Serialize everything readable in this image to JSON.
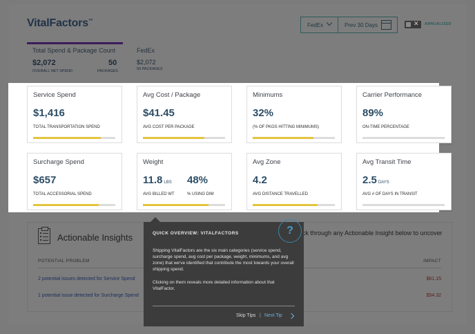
{
  "header": {
    "logo": "VitalFactors",
    "logo_tm": "™",
    "carrier": "FedEx",
    "range": "Prev 30 Days",
    "toggle_x": "✕",
    "annualized": "ANNUALIZED"
  },
  "tabs": [
    {
      "label": "Total Spend & Package Count",
      "value": "$2,072",
      "sub": "OVERALL NET SPEND",
      "value2": "50",
      "sub2": "PACKAGES"
    },
    {
      "label": "FedEx",
      "value": "$2,072",
      "sub": "50 PACKAGES"
    }
  ],
  "cards": {
    "service": {
      "title": "Service Spend",
      "value": "$1,416",
      "sub": "TOTAL TRANSPORTATION SPEND",
      "progress": 0.82
    },
    "avgcost": {
      "title": "Avg Cost / Package",
      "value": "$41.45",
      "sub": "AVG COST PER PACKAGE",
      "progress": 0.75
    },
    "minimums": {
      "title": "Minimums",
      "value": "32%",
      "sub": "(% OF PKGS HITTING MINIMUMS)",
      "progress": 0.74
    },
    "carrier": {
      "title": "Carrier Performance",
      "value": "89%",
      "sub": "ON-TIME PERCENTAGE",
      "progress": 0.0
    },
    "surcharge": {
      "title": "Surcharge Spend",
      "value": "$657",
      "sub": "TOTAL ACCESSORIAL SPEND",
      "progress": 0.8
    },
    "weight": {
      "title": "Weight",
      "value": "11.8",
      "unit": "LBS",
      "sub": "AVG BILLED WT",
      "value2": "48%",
      "sub2": "% USING DIM",
      "progress": 0.8
    },
    "zone": {
      "title": "Avg Zone",
      "value": "4.2",
      "sub": "AVG DISTANCE TRAVELLED",
      "progress": 0.79
    },
    "transit": {
      "title": "Avg Transit Time",
      "value": "2.5",
      "unit": "DAYS",
      "sub": "AVG # OF DAYS IN TRANSIT",
      "progress": 0.0
    }
  },
  "insights": {
    "title": "Actionable Insights",
    "intro": "lick through any Actionable Insight below to uncover",
    "col_problem": "POTENTIAL PROBLEM",
    "col_impact": "IMPACT",
    "rows": [
      {
        "text": "2 potential issues detected for Service Spend",
        "impact": "$61.15"
      },
      {
        "text": "1 potential issue detected for Surcharge Spend",
        "impact": "$54.32"
      }
    ]
  },
  "tip": {
    "heading": "QUICK OVERVIEW: VITALFACTORS",
    "p1": "Shipping VitalFactors are the six main categories (service spend, surcharge spend, avg cost per package, weight, minimums, and avg zone) that we've identified that contribute the most towards your overall shipping spend.",
    "p2": "Clicking on them reveals more detailed information about that VitalFactor.",
    "skip": "Skip Tips",
    "sep": "|",
    "next": "Next Tip",
    "help": "?"
  },
  "colors": {
    "accent": "#e4c43c",
    "brand": "#2c4d66",
    "tab_active": "#3a1b5c",
    "help": "#3c86ad"
  }
}
